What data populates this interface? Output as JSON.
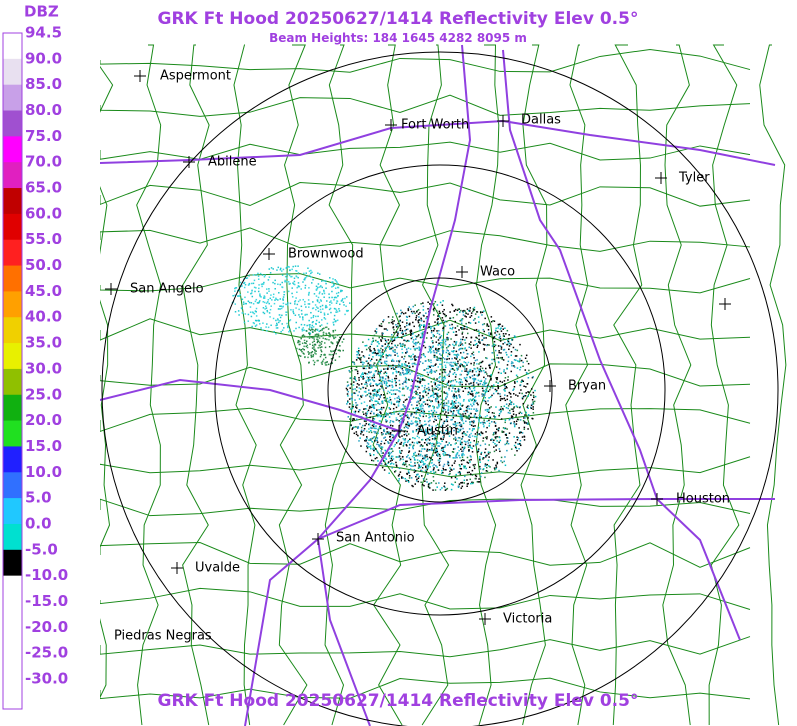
{
  "header": {
    "title": "GRK Ft Hood 20250627/1414 Reflectivity Elev 0.5°",
    "subtitle": "Beam Heights: 184 1645 4282 8095 m"
  },
  "footer": {
    "title": "GRK Ft Hood 20250627/1414 Reflectivity Elev 0.5°"
  },
  "legend": {
    "unit": "DBZ",
    "labels": [
      "94.5",
      "90.0",
      "85.0",
      "80.0",
      "75.0",
      "70.0",
      "65.0",
      "60.0",
      "55.0",
      "50.0",
      "45.0",
      "40.0",
      "35.0",
      "30.0",
      "25.0",
      "20.0",
      "15.0",
      "10.0",
      "5.0",
      "0.0",
      "-5.0",
      "-10.0",
      "-15.0",
      "-20.0",
      "-25.0",
      "-30.0"
    ]
  },
  "cities": [
    "Aspermont",
    "Fort Worth",
    "Dallas",
    "Abilene",
    "Tyler",
    "Brownwood",
    "Waco",
    "San Angelo",
    "Bryan",
    "Austin",
    "Houston",
    "San Antonio",
    "Uvalde",
    "Piedras Negras",
    "Victoria"
  ]
}
